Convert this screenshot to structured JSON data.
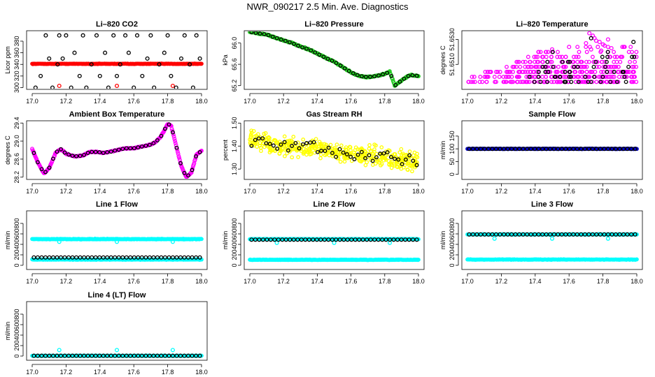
{
  "figure_title": "NWR_090217  2.5 Min. Ave. Diagnostics",
  "colors": {
    "black": "#000000",
    "red": "#ff0000",
    "green": "#22cc22",
    "magenta": "#ff00ff",
    "yellow": "#ffff00",
    "blue": "#0000cc",
    "cyan": "#00ffff"
  },
  "chart_data": [
    {
      "type": "scatter",
      "title": "Li–820 CO2",
      "ylabel": "Licor ppm",
      "xlim": [
        17.0,
        18.0
      ],
      "ylim": [
        297,
        398
      ],
      "xticks": [
        "17.0",
        "17.2",
        "17.4",
        "17.6",
        "17.8",
        "18.0"
      ],
      "yticks": [
        {
          "v": 300,
          "label": "300"
        },
        {
          "v": 320,
          "label": "320"
        },
        {
          "v": 340,
          "label": "340"
        },
        {
          "v": 360,
          "label": "360"
        },
        {
          "v": 380,
          "label": "380"
        }
      ],
      "series": [
        {
          "color": "red",
          "style": "dense",
          "y": 341,
          "jitter": 0.6,
          "count": 260
        },
        {
          "color": "red",
          "style": "points",
          "x": [
            17.16,
            17.5,
            17.83
          ],
          "y": [
            303,
            303,
            303
          ]
        },
        {
          "color": "black",
          "style": "points",
          "x": [
            17.02,
            17.05,
            17.08,
            17.1,
            17.12,
            17.15,
            17.16,
            17.18,
            17.2,
            17.23,
            17.25,
            17.28,
            17.3,
            17.32,
            17.35,
            17.38,
            17.4,
            17.43,
            17.45,
            17.48,
            17.5,
            17.52,
            17.55,
            17.57,
            17.6,
            17.62,
            17.65,
            17.68,
            17.7,
            17.72,
            17.75,
            17.78,
            17.8,
            17.82,
            17.85,
            17.88,
            17.9,
            17.93,
            17.95,
            17.97,
            17.99
          ],
          "y": [
            300,
            320,
            390,
            350,
            300,
            340,
            390,
            350,
            390,
            300,
            360,
            320,
            390,
            300,
            340,
            390,
            320,
            360,
            300,
            390,
            320,
            340,
            390,
            360,
            300,
            390,
            320,
            350,
            390,
            300,
            340,
            360,
            390,
            320,
            300,
            350,
            390,
            340,
            300,
            390,
            350
          ]
        }
      ]
    },
    {
      "type": "scatter",
      "title": "Li–820 Pressure",
      "ylabel": "kPa",
      "xlim": [
        17.0,
        18.0
      ],
      "ylim": [
        65.13,
        66.23
      ],
      "xticks": [
        "17.0",
        "17.2",
        "17.4",
        "17.6",
        "17.8",
        "18.0"
      ],
      "yticks": [
        {
          "v": 65.2,
          "label": "65.2"
        },
        {
          "v": 65.6,
          "label": "65.6"
        },
        {
          "v": 66.0,
          "label": "66.0"
        }
      ],
      "series": [
        {
          "color": "green",
          "style": "curve",
          "jitter": 0.015,
          "count": 300,
          "x": [
            17.0,
            17.05,
            17.1,
            17.15,
            17.2,
            17.25,
            17.3,
            17.35,
            17.4,
            17.45,
            17.5,
            17.55,
            17.6,
            17.65,
            17.7,
            17.75,
            17.8,
            17.83,
            17.86,
            17.9,
            17.95,
            18.0
          ],
          "y": [
            66.21,
            66.18,
            66.16,
            66.1,
            66.05,
            66.0,
            65.93,
            65.88,
            65.8,
            65.72,
            65.65,
            65.55,
            65.45,
            65.38,
            65.36,
            65.38,
            65.42,
            65.46,
            65.2,
            65.3,
            65.4,
            65.38
          ]
        },
        {
          "color": "black",
          "style": "curve-sample",
          "count": 40
        }
      ]
    },
    {
      "type": "scatter",
      "title": "Li–820 Temperature",
      "ylabel": "degrees C",
      "xlim": [
        17.0,
        18.0
      ],
      "ylim": [
        51.649,
        51.6537
      ],
      "xticks": [
        "17.0",
        "17.2",
        "17.4",
        "17.6",
        "17.8",
        "18.0"
      ],
      "yticks": [
        {
          "v": 51.651,
          "label": "51.6510"
        },
        {
          "v": 51.653,
          "label": "51.6530"
        }
      ],
      "series": [
        {
          "color": "magenta",
          "style": "levels",
          "levels": [
            51.6496,
            51.65,
            51.6504,
            51.6508,
            51.6512,
            51.6516,
            51.652,
            51.6524
          ],
          "density": [
            1.0,
            0.95,
            0.8,
            0.6,
            0.45,
            0.3,
            0.18,
            0.1
          ],
          "count": 90
        },
        {
          "color": "magenta",
          "style": "points",
          "x": [
            17.72,
            17.74,
            17.75,
            17.76,
            17.7,
            17.78,
            17.8,
            17.77,
            17.73,
            17.79,
            17.81,
            17.83,
            17.5,
            17.6,
            17.85
          ],
          "y": [
            51.6535,
            51.6533,
            51.6531,
            51.6529,
            51.6527,
            51.6528,
            51.6526,
            51.6524,
            51.6522,
            51.6521,
            51.6525,
            51.653,
            51.6522,
            51.6524,
            51.6523
          ]
        },
        {
          "color": "black",
          "style": "levels",
          "levels": [
            51.6496,
            51.65,
            51.6504,
            51.6508,
            51.6512,
            51.6516,
            51.652
          ],
          "density": [
            0.35,
            0.3,
            0.25,
            0.2,
            0.15,
            0.1,
            0.06
          ],
          "count": 40
        },
        {
          "color": "black",
          "style": "points",
          "x": [
            17.73,
            17.98
          ],
          "y": [
            51.6531,
            51.6528
          ]
        }
      ]
    },
    {
      "type": "scatter",
      "title": "Ambient Box Temperature",
      "ylabel": "degrees C",
      "xlim": [
        17.0,
        18.0
      ],
      "ylim": [
        28.15,
        29.45
      ],
      "xticks": [
        "17.0",
        "17.2",
        "17.4",
        "17.6",
        "17.8",
        "18.0"
      ],
      "yticks": [
        {
          "v": 28.2,
          "label": "28.2"
        },
        {
          "v": 28.6,
          "label": "28.6"
        },
        {
          "v": 29.0,
          "label": "29.0"
        },
        {
          "v": 29.4,
          "label": "29.4"
        }
      ],
      "series": [
        {
          "color": "magenta",
          "style": "curve",
          "jitter": 0.015,
          "count": 320,
          "x": [
            17.0,
            17.03,
            17.07,
            17.1,
            17.14,
            17.17,
            17.2,
            17.25,
            17.3,
            17.34,
            17.38,
            17.42,
            17.46,
            17.5,
            17.55,
            17.6,
            17.65,
            17.7,
            17.73,
            17.76,
            17.8,
            17.82,
            17.85,
            17.88,
            17.91,
            17.94,
            17.97,
            18.0
          ],
          "y": [
            28.83,
            28.55,
            28.28,
            28.4,
            28.75,
            28.82,
            28.72,
            28.66,
            28.68,
            28.76,
            28.76,
            28.74,
            28.76,
            28.8,
            28.84,
            28.84,
            28.88,
            28.92,
            28.98,
            29.1,
            29.38,
            29.35,
            28.9,
            28.45,
            28.2,
            28.3,
            28.7,
            28.78
          ]
        },
        {
          "color": "black",
          "style": "curve-sample",
          "count": 44
        }
      ]
    },
    {
      "type": "scatter",
      "title": "Gas Stream RH",
      "ylabel": "percent",
      "xlim": [
        17.0,
        18.0
      ],
      "ylim": [
        1.255,
        1.51
      ],
      "xticks": [
        "17.0",
        "17.2",
        "17.4",
        "17.6",
        "17.8",
        "18.0"
      ],
      "yticks": [
        {
          "v": 1.3,
          "label": "1.30"
        },
        {
          "v": 1.4,
          "label": "1.40"
        },
        {
          "v": 1.5,
          "label": "1.50"
        }
      ],
      "series": [
        {
          "color": "yellow",
          "style": "band",
          "count": 420,
          "x": [
            17.0,
            17.2,
            17.4,
            17.6,
            17.8,
            18.0
          ],
          "y": [
            1.43,
            1.4,
            1.39,
            1.36,
            1.35,
            1.33
          ],
          "spread": 0.045
        },
        {
          "color": "black",
          "style": "band-sample",
          "count": 46
        }
      ]
    },
    {
      "type": "scatter",
      "title": "Sample Flow",
      "ylabel": "ml/min",
      "xlim": [
        17.0,
        18.0
      ],
      "ylim": [
        -20,
        210
      ],
      "xticks": [
        "17.0",
        "17.2",
        "17.4",
        "17.6",
        "17.8",
        "18.0"
      ],
      "yticks": [
        {
          "v": 0,
          "label": "0"
        },
        {
          "v": 50,
          "label": "50"
        },
        {
          "v": 100,
          "label": "100"
        },
        {
          "v": 150,
          "label": "150"
        }
      ],
      "series": [
        {
          "color": "blue",
          "style": "dense",
          "y": 100,
          "jitter": 1.2,
          "count": 300
        },
        {
          "color": "black",
          "style": "line-points",
          "y": 100,
          "count": 44
        }
      ]
    },
    {
      "type": "scatter",
      "title": "Line 1 Flow",
      "ylabel": "ml/min",
      "xlim": [
        17.0,
        18.0
      ],
      "ylim": [
        -80,
        1040
      ],
      "xticks": [
        "17.0",
        "17.2",
        "17.4",
        "17.6",
        "17.8",
        "18.0"
      ],
      "yticks": [
        {
          "v": 0,
          "label": "0"
        },
        {
          "v": 200,
          "label": "200"
        },
        {
          "v": 400,
          "label": "400"
        },
        {
          "v": 600,
          "label": "600"
        },
        {
          "v": 800,
          "label": "800"
        }
      ],
      "series": [
        {
          "color": "cyan",
          "style": "dense",
          "y": 500,
          "jitter": 8,
          "count": 300
        },
        {
          "color": "cyan",
          "style": "points",
          "x": [
            17.16,
            17.5,
            17.83
          ],
          "y": [
            450,
            450,
            450
          ]
        },
        {
          "color": "cyan",
          "style": "dense",
          "y": 110,
          "jitter": 6,
          "count": 300
        },
        {
          "color": "black",
          "style": "line-points",
          "y": 150,
          "count": 44
        }
      ]
    },
    {
      "type": "scatter",
      "title": "Line 2 Flow",
      "ylabel": "ml/min",
      "xlim": [
        17.0,
        18.0
      ],
      "ylim": [
        -80,
        1040
      ],
      "xticks": [
        "17.0",
        "17.2",
        "17.4",
        "17.6",
        "17.8",
        "18.0"
      ],
      "yticks": [
        {
          "v": 0,
          "label": "0"
        },
        {
          "v": 200,
          "label": "200"
        },
        {
          "v": 400,
          "label": "400"
        },
        {
          "v": 600,
          "label": "600"
        },
        {
          "v": 800,
          "label": "800"
        }
      ],
      "series": [
        {
          "color": "cyan",
          "style": "dense",
          "y": 500,
          "jitter": 6,
          "count": 300
        },
        {
          "color": "cyan",
          "style": "points",
          "x": [
            17.16,
            17.5,
            17.83
          ],
          "y": [
            430,
            430,
            430
          ]
        },
        {
          "color": "cyan",
          "style": "dense",
          "y": 105,
          "jitter": 6,
          "count": 300
        },
        {
          "color": "black",
          "style": "line-points",
          "y": 490,
          "count": 44
        }
      ]
    },
    {
      "type": "scatter",
      "title": "Line 3 Flow",
      "ylabel": "ml/min",
      "xlim": [
        17.0,
        18.0
      ],
      "ylim": [
        -80,
        1040
      ],
      "xticks": [
        "17.0",
        "17.2",
        "17.4",
        "17.6",
        "17.8",
        "18.0"
      ],
      "yticks": [
        {
          "v": 0,
          "label": "0"
        },
        {
          "v": 200,
          "label": "200"
        },
        {
          "v": 400,
          "label": "400"
        },
        {
          "v": 600,
          "label": "600"
        },
        {
          "v": 800,
          "label": "800"
        }
      ],
      "series": [
        {
          "color": "cyan",
          "style": "dense",
          "y": 590,
          "jitter": 6,
          "count": 300
        },
        {
          "color": "cyan",
          "style": "points",
          "x": [
            17.16,
            17.5,
            17.83
          ],
          "y": [
            510,
            510,
            510
          ]
        },
        {
          "color": "cyan",
          "style": "dense",
          "y": 110,
          "jitter": 6,
          "count": 300
        },
        {
          "color": "black",
          "style": "line-points",
          "y": 590,
          "count": 44
        }
      ]
    },
    {
      "type": "scatter",
      "title": "Line 4 (LT) Flow",
      "ylabel": "ml/min",
      "xlim": [
        17.0,
        18.0
      ],
      "ylim": [
        -80,
        1040
      ],
      "xticks": [
        "17.0",
        "17.2",
        "17.4",
        "17.6",
        "17.8",
        "18.0"
      ],
      "yticks": [
        {
          "v": 0,
          "label": "0"
        },
        {
          "v": 200,
          "label": "200"
        },
        {
          "v": 400,
          "label": "400"
        },
        {
          "v": 600,
          "label": "600"
        },
        {
          "v": 800,
          "label": "800"
        }
      ],
      "series": [
        {
          "color": "cyan",
          "style": "dense",
          "y": 5,
          "jitter": 4,
          "count": 300
        },
        {
          "color": "cyan",
          "style": "points",
          "x": [
            17.16,
            17.5,
            17.83
          ],
          "y": [
            115,
            115,
            115
          ]
        },
        {
          "color": "black",
          "style": "line-points",
          "y": 5,
          "count": 44
        }
      ]
    }
  ]
}
